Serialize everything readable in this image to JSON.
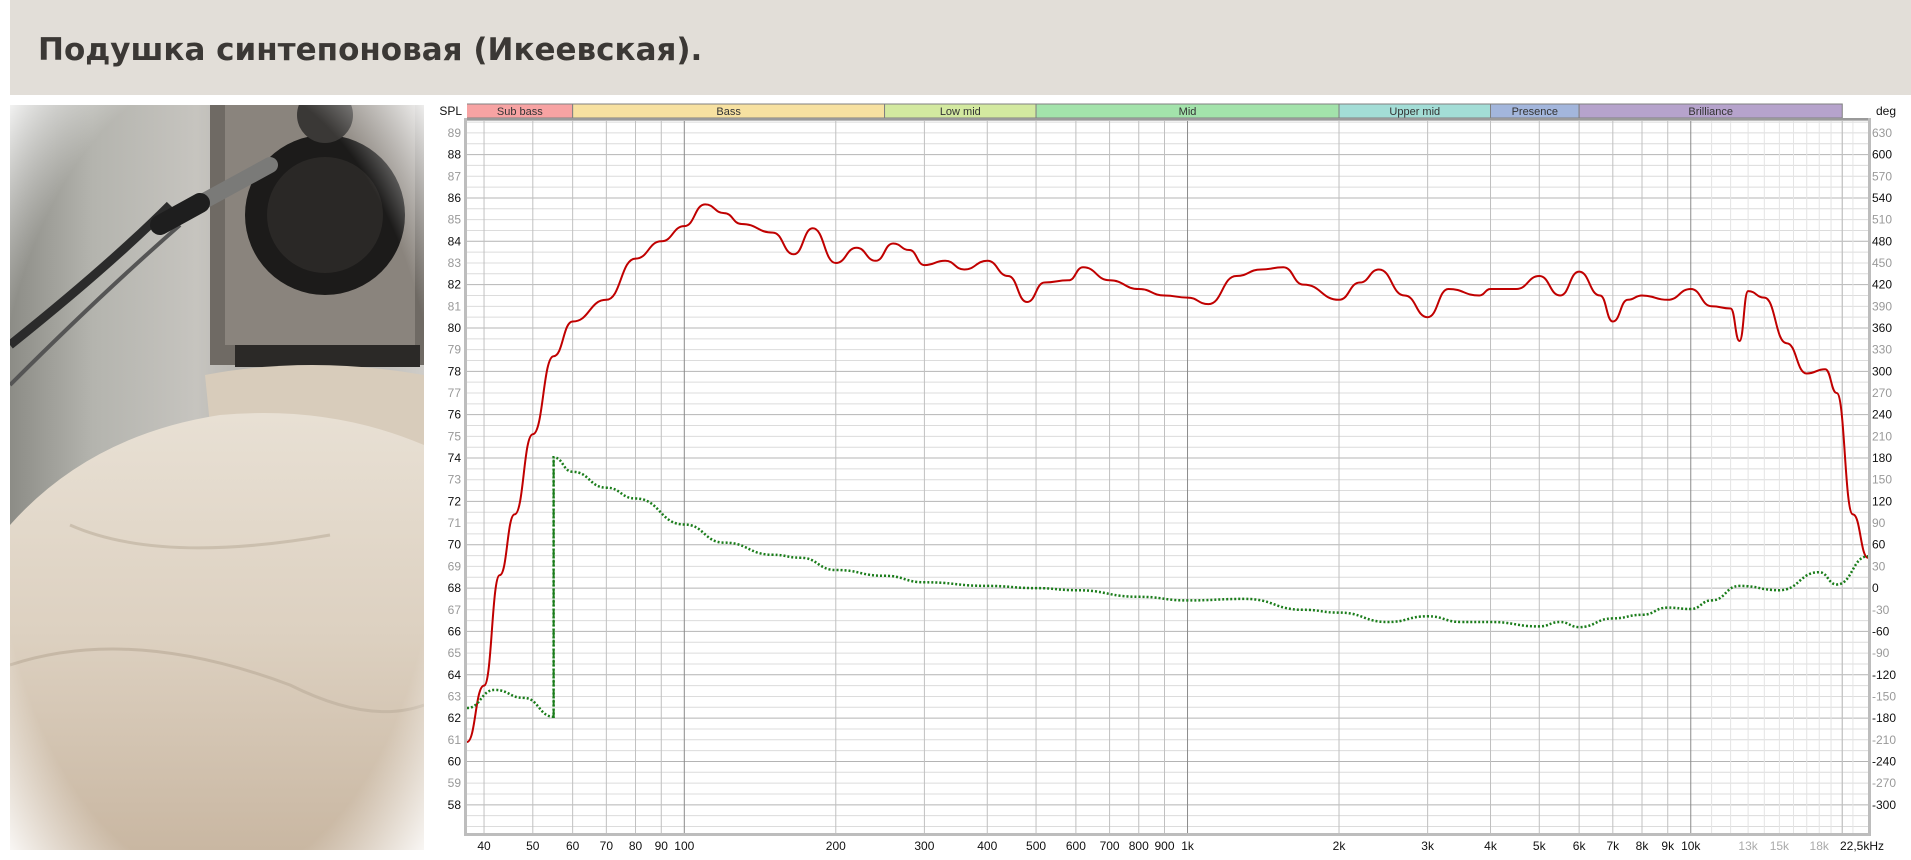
{
  "header": {
    "title": "Подушка синтепоновая (Икеевская)."
  },
  "photo": {
    "description_icon": "photo-speaker-on-cushion"
  },
  "chart_data": {
    "type": "line",
    "left_axis_label": "SPL",
    "right_axis_label": "deg",
    "x_scale": "log",
    "xlim": [
      37,
      22500
    ],
    "ylim": [
      56.7,
      89.55
    ],
    "y2lim": [
      -339,
      646.5
    ],
    "grid": true,
    "colors": {
      "spl": "#c00000",
      "phase": "#1b7d1b",
      "header_bg": "#e2ded8"
    },
    "bands": [
      {
        "label": "Sub bass",
        "from": 20,
        "to": 60,
        "color": "#f7a3a3"
      },
      {
        "label": "Bass",
        "from": 60,
        "to": 250,
        "color": "#f7e1a1"
      },
      {
        "label": "Low mid",
        "from": 250,
        "to": 500,
        "color": "#d3e9a0"
      },
      {
        "label": "Mid",
        "from": 500,
        "to": 2000,
        "color": "#a3e3ab"
      },
      {
        "label": "Upper mid",
        "from": 2000,
        "to": 4000,
        "color": "#a3ddd6"
      },
      {
        "label": "Presence",
        "from": 4000,
        "to": 6000,
        "color": "#a3b6dc"
      },
      {
        "label": "Brilliance",
        "from": 6000,
        "to": 20000,
        "color": "#b6a3cc"
      }
    ],
    "x_ticks": [
      {
        "f": 40,
        "label": "40"
      },
      {
        "f": 50,
        "label": "50"
      },
      {
        "f": 60,
        "label": "60"
      },
      {
        "f": 70,
        "label": "70"
      },
      {
        "f": 80,
        "label": "80"
      },
      {
        "f": 90,
        "label": "90"
      },
      {
        "f": 100,
        "label": "100"
      },
      {
        "f": 200,
        "label": "200"
      },
      {
        "f": 300,
        "label": "300"
      },
      {
        "f": 400,
        "label": "400"
      },
      {
        "f": 500,
        "label": "500"
      },
      {
        "f": 600,
        "label": "600"
      },
      {
        "f": 700,
        "label": "700"
      },
      {
        "f": 800,
        "label": "800"
      },
      {
        "f": 900,
        "label": "900"
      },
      {
        "f": 1000,
        "label": "1k"
      },
      {
        "f": 2000,
        "label": "2k"
      },
      {
        "f": 3000,
        "label": "3k"
      },
      {
        "f": 4000,
        "label": "4k"
      },
      {
        "f": 5000,
        "label": "5k"
      },
      {
        "f": 6000,
        "label": "6k"
      },
      {
        "f": 7000,
        "label": "7k"
      },
      {
        "f": 8000,
        "label": "8k"
      },
      {
        "f": 9000,
        "label": "9k"
      },
      {
        "f": 10000,
        "label": "10k"
      },
      {
        "f": 13000,
        "label": "13k",
        "muted": true
      },
      {
        "f": 15000,
        "label": "15k",
        "muted": true
      },
      {
        "f": 18000,
        "label": "18k",
        "muted": true
      },
      {
        "f": 22500,
        "label": "22,5kHz"
      }
    ],
    "y_ticks": [
      89,
      88,
      87,
      86,
      85,
      84,
      83,
      82,
      81,
      80,
      79,
      78,
      77,
      76,
      75,
      74,
      73,
      72,
      71,
      70,
      69,
      68,
      67,
      66,
      65,
      64,
      63,
      62,
      61,
      60,
      59,
      58
    ],
    "y2_ticks": [
      630,
      600,
      570,
      540,
      510,
      480,
      450,
      420,
      390,
      360,
      330,
      300,
      270,
      240,
      210,
      180,
      150,
      120,
      90,
      60,
      30,
      0,
      -30,
      -60,
      -90,
      -120,
      -150,
      -180,
      -210,
      -240,
      -270,
      -300
    ],
    "series": [
      {
        "id": "spl",
        "axis": "left",
        "style": "solid",
        "x": [
          37,
          40,
          43,
          46,
          50,
          55,
          60,
          70,
          80,
          90,
          100,
          110,
          120,
          130,
          150,
          165,
          180,
          200,
          220,
          240,
          260,
          280,
          300,
          330,
          360,
          400,
          440,
          480,
          520,
          580,
          620,
          700,
          800,
          900,
          1000,
          1100,
          1250,
          1400,
          1550,
          1700,
          2000,
          2200,
          2400,
          2700,
          3000,
          3300,
          3800,
          4000,
          4500,
          5000,
          5500,
          6000,
          6600,
          7000,
          7500,
          8000,
          9000,
          10000,
          11000,
          12000,
          12500,
          13000,
          14000,
          15500,
          17000,
          18500,
          19500,
          21000,
          22500
        ],
        "y": [
          60.9,
          63.5,
          68.6,
          71.4,
          75.1,
          78.7,
          80.3,
          81.3,
          83.2,
          84.0,
          84.7,
          85.7,
          85.3,
          84.8,
          84.4,
          83.4,
          84.6,
          83.0,
          83.7,
          83.1,
          83.9,
          83.6,
          82.9,
          83.1,
          82.7,
          83.1,
          82.4,
          81.2,
          82.1,
          82.2,
          82.8,
          82.2,
          81.8,
          81.5,
          81.4,
          81.1,
          82.4,
          82.7,
          82.8,
          82.0,
          81.3,
          82.1,
          82.7,
          81.5,
          80.5,
          81.8,
          81.5,
          81.8,
          81.8,
          82.4,
          81.5,
          82.6,
          81.5,
          80.3,
          81.3,
          81.5,
          81.3,
          81.8,
          81.0,
          80.9,
          79.4,
          81.7,
          81.4,
          79.3,
          77.9,
          78.1,
          77.0,
          71.4,
          69.4
        ]
      },
      {
        "id": "phase",
        "axis": "right",
        "style": "dotted",
        "x": [
          37,
          42,
          48,
          55,
          55,
          60,
          70,
          80,
          100,
          120,
          150,
          170,
          200,
          250,
          300,
          400,
          500,
          600,
          800,
          1000,
          1300,
          1700,
          2000,
          2500,
          3000,
          3500,
          4000,
          5000,
          5500,
          6000,
          7000,
          8000,
          9000,
          10000,
          11000,
          12500,
          15000,
          18000,
          19500,
          22500
        ],
        "y": [
          -166,
          -141,
          -152,
          -178,
          181,
          161,
          139,
          124,
          88,
          63,
          46,
          42,
          25,
          17,
          8,
          3,
          0,
          -3,
          -12,
          -17,
          -15,
          -30,
          -34,
          -47,
          -39,
          -47,
          -47,
          -53,
          -47,
          -54,
          -42,
          -37,
          -27,
          -29,
          -17,
          3,
          -3,
          22,
          5,
          44
        ]
      }
    ]
  }
}
